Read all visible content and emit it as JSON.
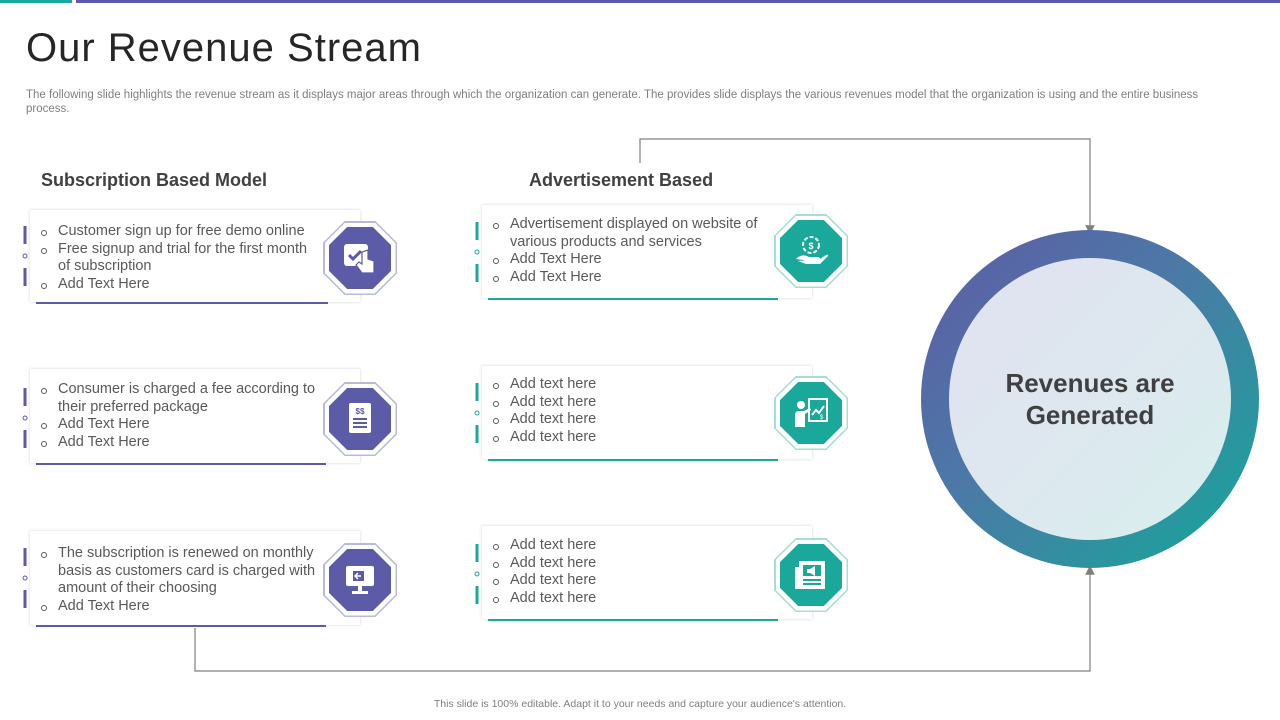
{
  "slide": {
    "title": "Our Revenue Stream",
    "subtitle": "The following slide highlights the revenue stream as it displays major areas through which the organization can generate. The provides slide displays the various revenues model that the organization is using and the entire business process.",
    "footer": "This slide is 100% editable.  Adapt it to your needs and capture your audience's attention."
  },
  "colors": {
    "purple": "#5b5ba8",
    "teal": "#1aa89b",
    "text": "#404040"
  },
  "subscription": {
    "heading": "Subscription Based Model",
    "cards": [
      {
        "icon": "hand-tap-icon",
        "items": [
          "Customer sign up for free demo online",
          "Free signup and trial for the first month of subscription",
          "Add Text Here"
        ]
      },
      {
        "icon": "invoice-dollar-icon",
        "items": [
          "Consumer is charged a fee according to their preferred package",
          "Add Text Here",
          "Add Text Here"
        ]
      },
      {
        "icon": "monitor-card-icon",
        "items": [
          "The subscription is renewed on monthly basis as customers card is charged with amount of their choosing",
          "Add Text Here"
        ]
      }
    ]
  },
  "advertisement": {
    "heading": "Advertisement Based",
    "cards": [
      {
        "icon": "hand-coin-icon",
        "items": [
          "Advertisement displayed on website of various products and services",
          "Add Text Here",
          "Add Text Here"
        ]
      },
      {
        "icon": "presenter-chart-icon",
        "items": [
          "Add text here",
          "Add text here",
          "Add text here",
          "Add text here"
        ]
      },
      {
        "icon": "newspaper-megaphone-icon",
        "items": [
          "Add text here",
          "Add text here",
          "Add text here",
          "Add text here"
        ]
      }
    ]
  },
  "result": {
    "label": "Revenues are Generated"
  }
}
